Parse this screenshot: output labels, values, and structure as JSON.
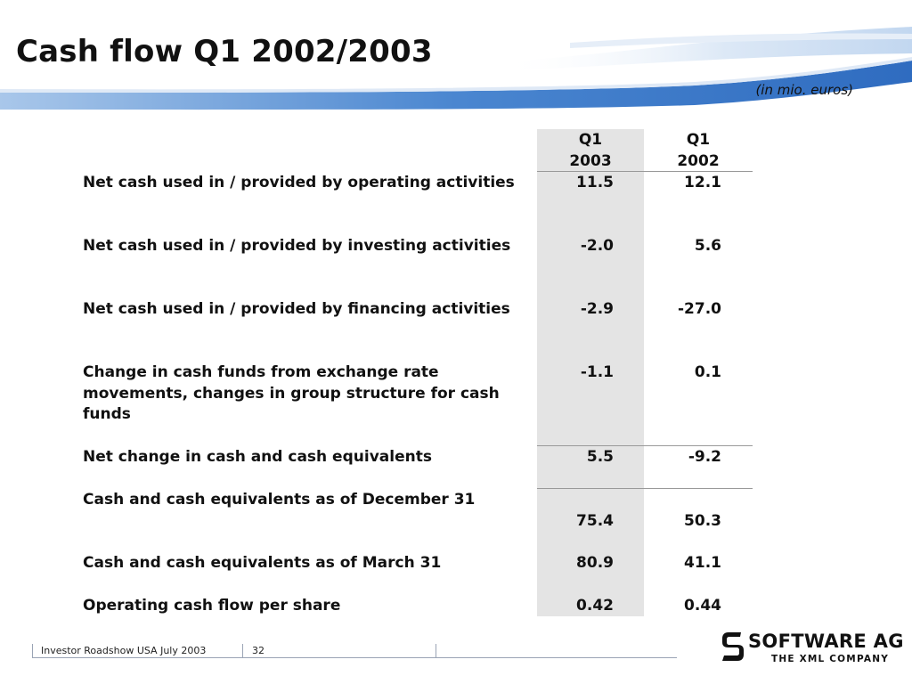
{
  "slide": {
    "title": "Cash flow Q1 2002/2003",
    "unit_note": "(in mio. euros)"
  },
  "table": {
    "headers": [
      {
        "line1": "Q1",
        "line2": "2003"
      },
      {
        "line1": "Q1",
        "line2": "2002"
      }
    ],
    "rows": [
      {
        "label": "Net cash used in / provided by operating activities",
        "q1_2003": "11.5",
        "q1_2002": "12.1"
      },
      {
        "label": "Net cash used in / provided by investing activities",
        "q1_2003": "-2.0",
        "q1_2002": "5.6"
      },
      {
        "label": "Net cash used in / provided by financing activities",
        "q1_2003": "-2.9",
        "q1_2002": "-27.0"
      },
      {
        "label": "Change in cash funds from exchange rate movements, changes in group structure for cash funds",
        "q1_2003": "-1.1",
        "q1_2002": "0.1"
      },
      {
        "label": "Net change in cash and cash equivalents",
        "q1_2003": "5.5",
        "q1_2002": "-9.2"
      },
      {
        "label": "Cash and cash equivalents as of December 31",
        "q1_2003": "75.4",
        "q1_2002": "50.3"
      },
      {
        "label": "Cash and cash equivalents as of March 31",
        "q1_2003": "80.9",
        "q1_2002": "41.1"
      },
      {
        "label": "Operating cash flow per share",
        "q1_2003": "0.42",
        "q1_2002": "0.44"
      }
    ]
  },
  "footer": {
    "event": "Investor Roadshow USA July 2003",
    "page_number": "32"
  },
  "logo": {
    "name": "SOFTWARE AG",
    "tagline": "THE XML COMPANY",
    "icon": "software-ag-s-icon"
  },
  "colors": {
    "swoosh_blue": "#4a86d0",
    "swoosh_light": "#cfe0f3",
    "column_shade": "#e4e4e4"
  }
}
